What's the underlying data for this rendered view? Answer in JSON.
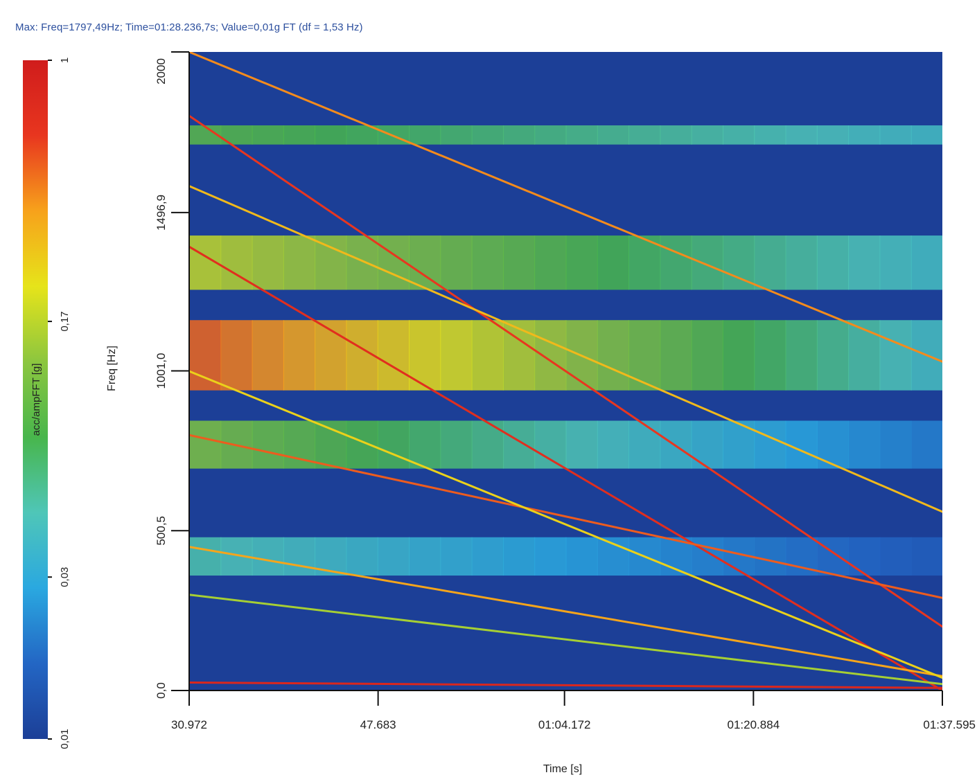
{
  "header": {
    "text": "Max: Freq=1797,49Hz; Time=01:28.236,7s; Value=0,01g FT (df = 1,53 Hz)"
  },
  "chart_data": {
    "type": "heatmap",
    "title": "",
    "xlabel": "Time [s]",
    "ylabel": "Freq [Hz]",
    "xlim": [
      30.972,
      97.595
    ],
    "ylim": [
      0,
      2000
    ],
    "x_ticks": [
      {
        "value": 30.972,
        "label": "30.972"
      },
      {
        "value": 47.683,
        "label": "47.683"
      },
      {
        "value": 64.172,
        "label": "01:04.172"
      },
      {
        "value": 80.884,
        "label": "01:20.884"
      },
      {
        "value": 97.595,
        "label": "01:37.595"
      }
    ],
    "y_ticks": [
      {
        "value": 0,
        "label": "0,0"
      },
      {
        "value": 500.5,
        "label": "500,5"
      },
      {
        "value": 1001.0,
        "label": "1001,0"
      },
      {
        "value": 1496.9,
        "label": "1496,9"
      },
      {
        "value": 2000,
        "label": "2000"
      }
    ],
    "colorbar": {
      "label": "acc/ampFFT [g]",
      "scale": "log",
      "min": 0.01,
      "max": 1,
      "ticks": [
        {
          "value": 1,
          "label": "1"
        },
        {
          "value": 0.17,
          "label": "0,17"
        },
        {
          "value": 0.03,
          "label": "0,03"
        },
        {
          "value": 0.01,
          "label": "0,01"
        }
      ],
      "colormap": [
        "#1c3f97",
        "#2366c4",
        "#2aa8e0",
        "#4fc6b8",
        "#48b64c",
        "#8cc63f",
        "#e6e41a",
        "#f7a21b",
        "#e8361f",
        "#d01c1c"
      ]
    },
    "bands": [
      {
        "freq": 1050,
        "start_value": 0.5,
        "end_value": 0.04
      },
      {
        "freq": 1740,
        "start_value": 0.09,
        "end_value": 0.04
      },
      {
        "freq": 1340,
        "start_value": 0.18,
        "end_value": 0.04
      },
      {
        "freq": 770,
        "start_value": 0.12,
        "end_value": 0.02
      },
      {
        "freq": 420,
        "start_value": 0.05,
        "end_value": 0.015
      }
    ],
    "orders": [
      {
        "f_start": 1800,
        "f_end": 200,
        "value": 0.6
      },
      {
        "f_start": 1390,
        "f_end": 0,
        "value": 0.7
      },
      {
        "f_start": 1580,
        "f_end": 560,
        "value": 0.3
      },
      {
        "f_start": 800,
        "f_end": 290,
        "value": 0.5
      },
      {
        "f_start": 450,
        "f_end": 45,
        "value": 0.35
      },
      {
        "f_start": 300,
        "f_end": 20,
        "value": 0.15
      },
      {
        "f_start": 2000,
        "f_end": 1030,
        "value": 0.4
      },
      {
        "f_start": 1000,
        "f_end": 40,
        "value": 0.25
      },
      {
        "f_start": 25,
        "f_end": 8,
        "value": 0.8
      }
    ]
  }
}
